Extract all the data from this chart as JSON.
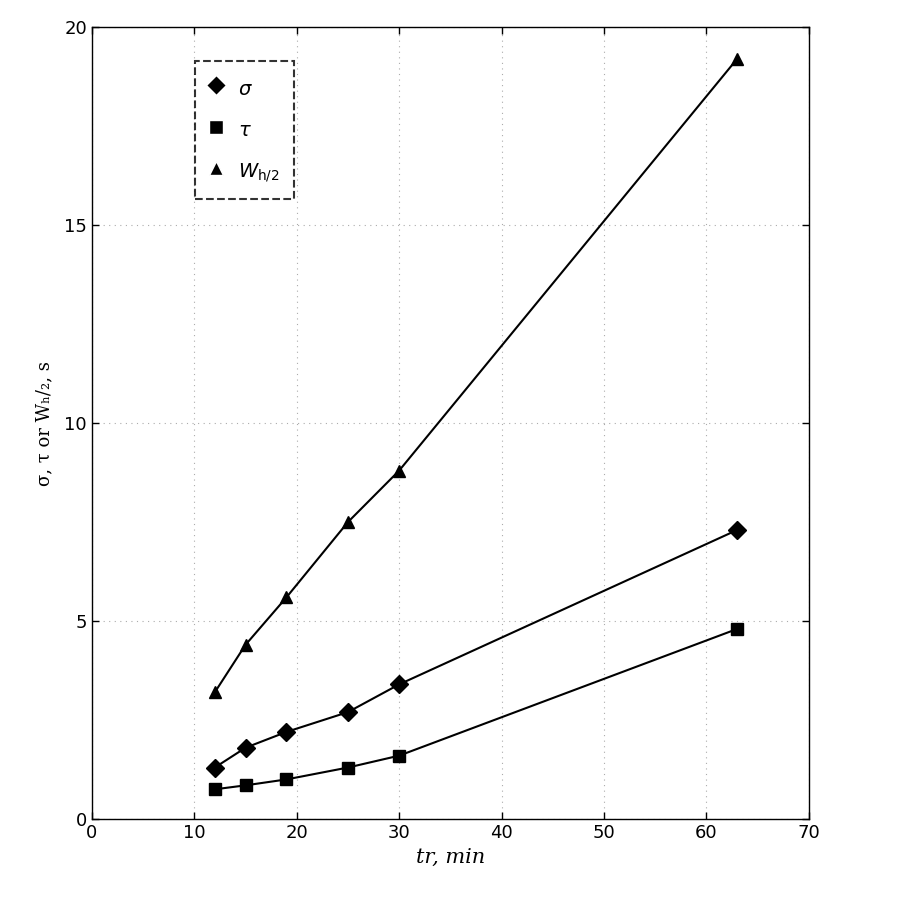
{
  "sigma_x": [
    12,
    15,
    19,
    25,
    30,
    63
  ],
  "sigma_y": [
    1.3,
    1.8,
    2.2,
    2.7,
    3.4,
    7.3
  ],
  "tau_x": [
    12,
    15,
    19,
    25,
    30,
    63
  ],
  "tau_y": [
    0.75,
    0.85,
    1.0,
    1.3,
    1.6,
    4.8
  ],
  "wh2_x": [
    12,
    15,
    19,
    25,
    30,
    63
  ],
  "wh2_y": [
    3.2,
    4.4,
    5.6,
    7.5,
    8.8,
    19.2
  ],
  "xlim": [
    0,
    70
  ],
  "ylim": [
    0,
    20
  ],
  "xticks": [
    0,
    10,
    20,
    30,
    40,
    50,
    60,
    70
  ],
  "yticks": [
    0,
    5,
    10,
    15,
    20
  ],
  "xlabel": "tr, min",
  "ylabel": "σ, τ or Wₕ/₂, s",
  "line_color": "#000000",
  "marker_color": "#000000",
  "bg_color": "#ffffff",
  "plot_bg": "#ffffff",
  "figsize": [
    9.19,
    9.1
  ],
  "dpi": 100
}
